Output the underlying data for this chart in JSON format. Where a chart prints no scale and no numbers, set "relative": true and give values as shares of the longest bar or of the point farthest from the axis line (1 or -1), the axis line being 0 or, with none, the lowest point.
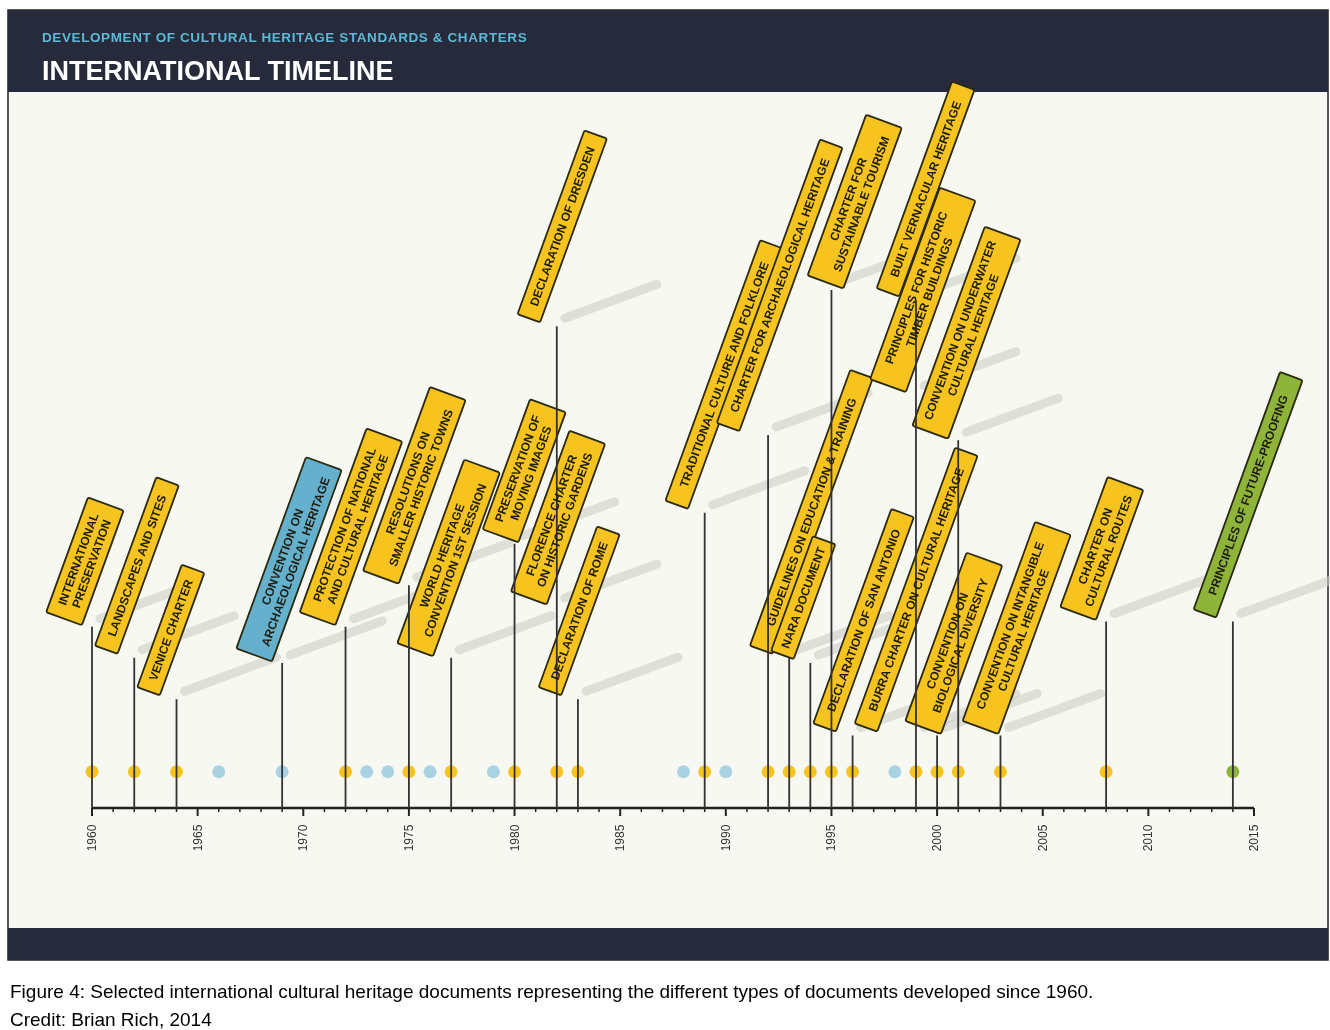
{
  "chart_data": {
    "type": "bar",
    "subtitle": "DEVELOPMENT OF CULTURAL HERITAGE STANDARDS & CHARTERS",
    "title": "INTERNATIONAL TIMELINE",
    "series": [
      {
        "color": "#333333",
        "x": [
          1960,
          1962,
          1964,
          1969,
          1972,
          1975,
          1977,
          1980,
          1982,
          1983,
          1989,
          1992,
          1993,
          1994,
          1995,
          1996,
          1999,
          2000,
          2001,
          2003,
          2008,
          2014
        ],
        "values": [
          0.35,
          0.29,
          0.21,
          0.28,
          0.35,
          0.43,
          0.29,
          0.51,
          0.93,
          0.21,
          0.57,
          0.72,
          0.29,
          0.28,
          1,
          0.14,
          0.98,
          0.14,
          0.71,
          0.14,
          0.36,
          0.36
        ]
      },
      {
        "type": "scatter",
        "x": [
          1960,
          1962,
          1964,
          1966,
          1969,
          1972,
          1973,
          1974,
          1975,
          1976,
          1977,
          1979,
          1980,
          1982,
          1983,
          1988,
          1989,
          1990,
          1992,
          1993,
          1994,
          1995,
          1996,
          1998,
          1999,
          2000,
          2001,
          2003,
          2008,
          2014
        ],
        "values": [
          0.07,
          0.07,
          0.07,
          0.07,
          0.07,
          0.07,
          0.07,
          0.07,
          0.07,
          0.07,
          0.07,
          0.07,
          0.07,
          0.07,
          0.07,
          0.07,
          0.07,
          0.07,
          0.07,
          0.07,
          0.07,
          0.07,
          0.07,
          0.07,
          0.07,
          0.07,
          0.07,
          0.07,
          0.07,
          0.07
        ],
        "colors": [
          "#f7c41f",
          "#f7c41f",
          "#f7c41f",
          "#a9d3e3",
          "#a9d3e3",
          "#f7c41f",
          "#a9d3e3",
          "#a9d3e3",
          "#f7c41f",
          "#a9d3e3",
          "#f7c41f",
          "#a9d3e3",
          "#f7c41f",
          "#f7c41f",
          "#f7c41f",
          "#a9d3e3",
          "#f7c41f",
          "#a9d3e3",
          "#f7c41f",
          "#f7c41f",
          "#f7c41f",
          "#f7c41f",
          "#f7c41f",
          "#a9d3e3",
          "#f7c41f",
          "#f7c41f",
          "#f7c41f",
          "#f7c41f",
          "#f7c41f",
          "#8fb43a"
        ]
      }
    ],
    "marker": "circle",
    "relative": true,
    "xlim": [
      1960,
      2015
    ],
    "xticks": [
      1960,
      {
        "value": 1961,
        "label": null
      },
      {
        "value": 1962,
        "label": null
      },
      {
        "value": 1963,
        "label": null
      },
      {
        "value": 1964,
        "label": null
      },
      1965,
      {
        "value": 1966,
        "label": null
      },
      {
        "value": 1967,
        "label": null
      },
      {
        "value": 1968,
        "label": null
      },
      {
        "value": 1969,
        "label": null
      },
      1970,
      {
        "value": 1971,
        "label": null
      },
      {
        "value": 1972,
        "label": null
      },
      {
        "value": 1973,
        "label": null
      },
      {
        "value": 1974,
        "label": null
      },
      1975,
      {
        "value": 1976,
        "label": null
      },
      {
        "value": 1977,
        "label": null
      },
      {
        "value": 1978,
        "label": null
      },
      {
        "value": 1979,
        "label": null
      },
      1980,
      {
        "value": 1981,
        "label": null
      },
      {
        "value": 1982,
        "label": null
      },
      {
        "value": 1983,
        "label": null
      },
      {
        "value": 1984,
        "label": null
      },
      1985,
      {
        "value": 1986,
        "label": null
      },
      {
        "value": 1987,
        "label": null
      },
      {
        "value": 1988,
        "label": null
      },
      {
        "value": 1989,
        "label": null
      },
      1990,
      {
        "value": 1991,
        "label": null
      },
      {
        "value": 1992,
        "label": null
      },
      {
        "value": 1993,
        "label": null
      },
      {
        "value": 1994,
        "label": null
      },
      1995,
      {
        "value": 1996,
        "label": null
      },
      {
        "value": 1997,
        "label": null
      },
      {
        "value": 1998,
        "label": null
      },
      {
        "value": 1999,
        "label": null
      },
      2000,
      {
        "value": 2001,
        "label": null
      },
      {
        "value": 2002,
        "label": null
      },
      {
        "value": 2003,
        "label": null
      },
      {
        "value": 2004,
        "label": null
      },
      2005,
      {
        "value": 2006,
        "label": null
      },
      {
        "value": 2007,
        "label": null
      },
      {
        "value": 2008,
        "label": null
      },
      {
        "value": 2009,
        "label": null
      },
      2010,
      {
        "value": 2011,
        "label": null
      },
      {
        "value": 2012,
        "label": null
      },
      {
        "value": 2013,
        "label": null
      },
      {
        "value": 2014,
        "label": null
      },
      2015
    ],
    "tick_labels": "x",
    "grid": false,
    "annotations": [
      {
        "text": "INTERNATIONAL PRESERVATION",
        "x": 1960,
        "y": 0.35
      },
      {
        "text": "LANDSCAPES AND SITES",
        "x": 1962,
        "y": 0.29
      },
      {
        "text": "VENICE CHARTER",
        "x": 1964,
        "y": 0.21
      },
      {
        "text": "CONVENTION ON ARCHAEOLOGICAL HERITAGE",
        "x": 1969,
        "y": 0.28
      },
      {
        "text": "PROTECTION OF NATIONAL AND CULTURAL HERITAGE",
        "x": 1972,
        "y": 0.35
      },
      {
        "text": "RESOLUTIONS ON SMALLER HISTORIC TOWNS",
        "x": 1975,
        "y": 0.43
      },
      {
        "text": "WORLD HERITAGE CONVENTION 1ST SESSION",
        "x": 1977,
        "y": 0.29
      },
      {
        "text": "PRESERVATION OF MOVING IMAGES",
        "x": 1980,
        "y": 0.51
      },
      {
        "text": "DECLARATION OF DRESDEN",
        "x": 1982,
        "y": 0.93
      },
      {
        "text": "FLORENCE CHARTER ON HISTORIC GARDENS",
        "x": 1982,
        "y": 0.39
      },
      {
        "text": "DECLARATION OF ROME",
        "x": 1983,
        "y": 0.21
      },
      {
        "text": "TRADITIONAL CULTURE AND FOLKLORE",
        "x": 1989,
        "y": 0.57
      },
      {
        "text": "CHARTER FOR ARCHAEOLOGICAL HERITAGE",
        "x": 1992,
        "y": 0.72
      },
      {
        "text": "GUIDELINES ON EDUCATION & TRAINING",
        "x": 1993,
        "y": 0.29
      },
      {
        "text": "NARA DOCUMENT",
        "x": 1994,
        "y": 0.28
      },
      {
        "text": "CHARTER FOR SUSTAINABLE TOURISM",
        "x": 1995,
        "y": 1
      },
      {
        "text": "DECLARATION OF SAN ANTONIO",
        "x": 1996,
        "y": 0.14
      },
      {
        "text": "BUILT VERNACULAR HERITAGE",
        "x": 1999,
        "y": 0.98
      },
      {
        "text": "PRINCIPLES FOR HISTORIC TIMBER BUILDINGS",
        "x": 1999,
        "y": 0.8
      },
      {
        "text": "BURRA CHARTER ON CULTURAL HERITAGE",
        "x": 1999,
        "y": 0.14
      },
      {
        "text": "CONVENTION ON BIOLOGICAL DIVERSITY",
        "x": 2000,
        "y": 0.14
      },
      {
        "text": "CONVENTION ON UNDERWATER CULTURAL HERITAGE",
        "x": 2001,
        "y": 0.71
      },
      {
        "text": "CONVENTION ON INTANGIBLE CULTURAL HERITAGE",
        "x": 2003,
        "y": 0.14
      },
      {
        "text": "CHARTER ON CULTURAL ROUTES",
        "x": 2008,
        "y": 0.36
      },
      {
        "text": "PRINCIPLES OF FUTURE-PROOFING",
        "x": 2014,
        "y": 0.36
      },
      "Figure 4:  Selected international cultural heritage documents representing the different types of documents developed since 1960.",
      "Credit: Brian Rich, 2014"
    ]
  }
}
